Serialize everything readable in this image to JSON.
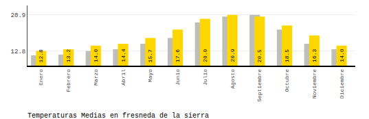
{
  "chart_data": {
    "type": "bar",
    "title": "Temperaturas Medias en fresneda de la sierra",
    "categories": [
      "Enero",
      "Febrero",
      "Marzo",
      "Abril",
      "Mayo",
      "Junio",
      "Julio",
      "Agosto",
      "Septiembre",
      "Octubre",
      "Noviembre",
      "Diciembre"
    ],
    "series": [
      {
        "color": "#C0BEB8",
        "values": [
          11.8,
          12.0,
          12.8,
          13.2,
          14.4,
          15.7,
          19.2,
          20.5,
          20.9,
          17.6,
          14.4,
          13.2
        ]
      },
      {
        "color": "#FFD700",
        "values": [
          12.8,
          13.2,
          14.0,
          14.4,
          15.7,
          17.6,
          20.0,
          20.9,
          20.5,
          18.5,
          16.3,
          14.0
        ],
        "value_labels": [
          "12.8",
          "13.2",
          "14.0",
          "14.4",
          "15.7",
          "17.6",
          "20.0",
          "20.9",
          "20.5",
          "18.5",
          "16.3",
          "14.0"
        ]
      }
    ],
    "ylim": [
      9.5,
      23.0
    ],
    "yticks": [
      12.8,
      20.9
    ],
    "grid": true,
    "data_labels": true
  }
}
